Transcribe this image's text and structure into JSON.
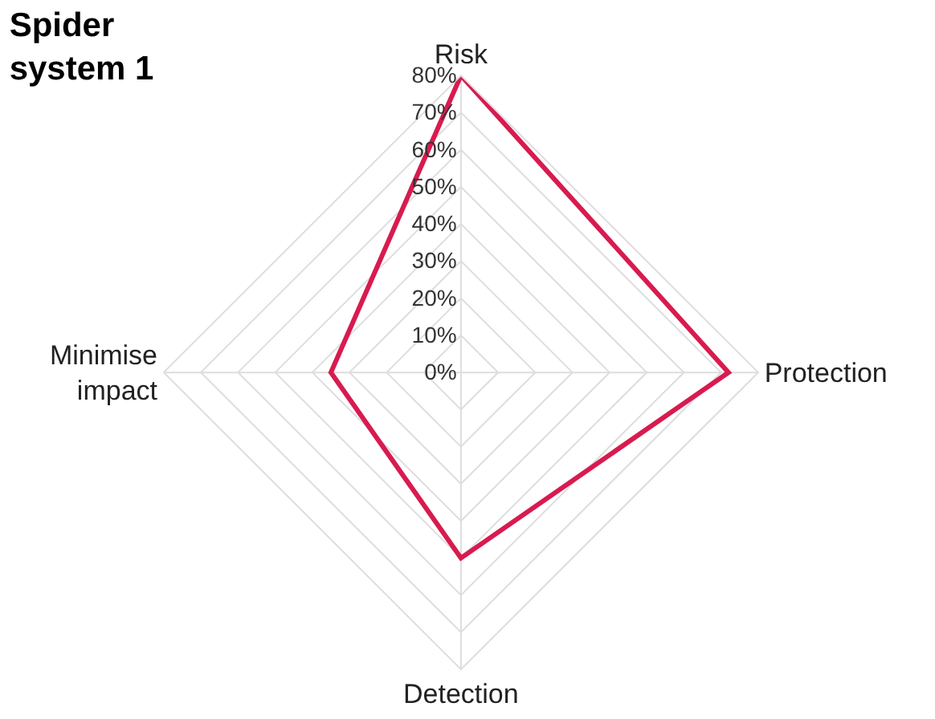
{
  "chart_data": {
    "type": "radar",
    "title": "Spider system 1",
    "categories": [
      "Risk",
      "Protection",
      "Detection",
      "Minimise impact"
    ],
    "series": [
      {
        "color": "#d81b4f",
        "values": [
          80,
          72,
          50,
          35
        ]
      }
    ],
    "ylim": [
      0,
      80
    ],
    "yticks": [
      {
        "value": 0,
        "label": "0%"
      },
      {
        "value": 10,
        "label": "10%"
      },
      {
        "value": 20,
        "label": "20%"
      },
      {
        "value": 30,
        "label": "30%"
      },
      {
        "value": 40,
        "label": "40%"
      },
      {
        "value": 50,
        "label": "50%"
      },
      {
        "value": 60,
        "label": "60%"
      },
      {
        "value": 70,
        "label": "70%"
      },
      {
        "value": 80,
        "label": "80%"
      }
    ],
    "grid": true,
    "marker": "none",
    "line_style": "solid"
  }
}
